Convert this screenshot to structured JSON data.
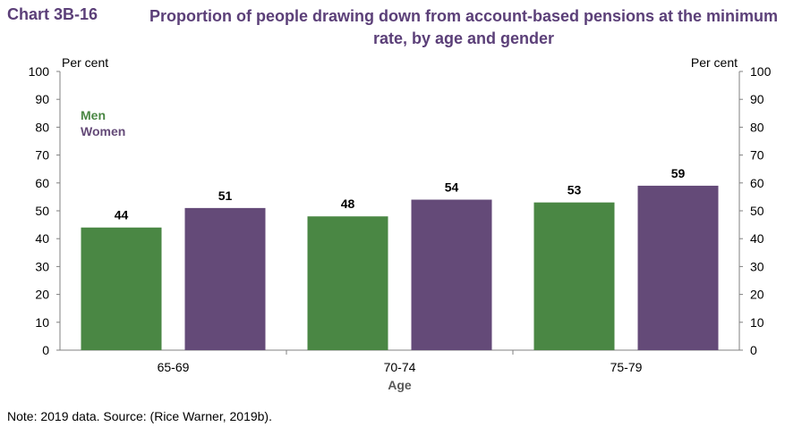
{
  "chart_number": "Chart 3B-16",
  "title": "Proportion of people drawing down from account-based pensions at the minimum rate, by age and gender",
  "note": "Note: 2019 data. Source: (Rice Warner, 2019b).",
  "colors": {
    "men": "#4a8744",
    "women": "#644a78",
    "title": "#5b3f78"
  },
  "chart_data": {
    "type": "bar",
    "categories": [
      "65-69",
      "70-74",
      "75-79"
    ],
    "series": [
      {
        "name": "Men",
        "values": [
          44,
          48,
          53
        ],
        "color": "#4a8744"
      },
      {
        "name": "Women",
        "values": [
          51,
          54,
          59
        ],
        "color": "#644a78"
      }
    ],
    "data_labels": [
      [
        "44",
        "48",
        "53"
      ],
      [
        "51",
        "54",
        "59"
      ]
    ],
    "xlabel": "Age",
    "ylabel_left": "Per cent",
    "ylabel_right": "Per cent",
    "ylim": [
      0,
      100
    ],
    "yticks": [
      "0",
      "10",
      "20",
      "30",
      "40",
      "50",
      "60",
      "70",
      "80",
      "90",
      "100"
    ],
    "grid": false,
    "legend": "top-left"
  }
}
